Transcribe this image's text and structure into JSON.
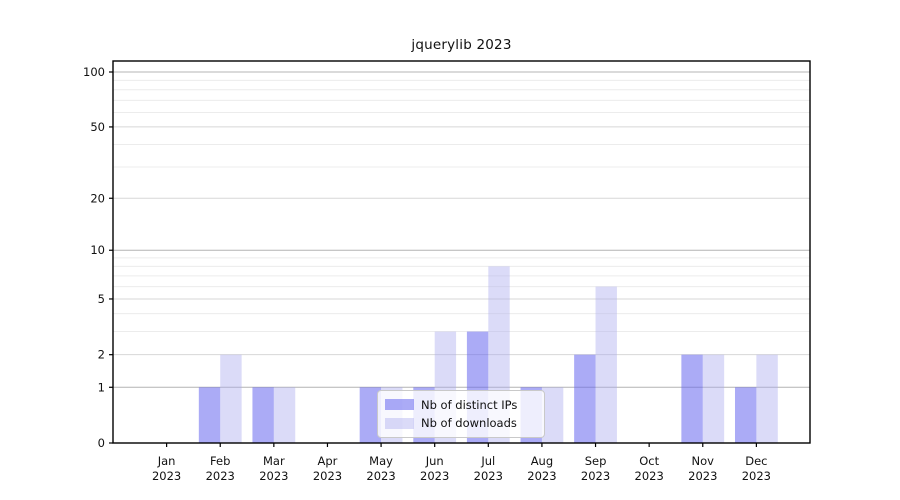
{
  "chart_data": {
    "type": "bar",
    "title": "jquerylib 2023",
    "categories": [
      "Jan",
      "Feb",
      "Mar",
      "Apr",
      "May",
      "Jun",
      "Jul",
      "Aug",
      "Sep",
      "Oct",
      "Nov",
      "Dec"
    ],
    "category_year": "2023",
    "series": [
      {
        "name": "Nb of distinct IPs",
        "color": "rgba(102,102,238,0.55)",
        "values": [
          0,
          1,
          1,
          0,
          1,
          1,
          3,
          1,
          2,
          0,
          2,
          1
        ]
      },
      {
        "name": "Nb of downloads",
        "color": "rgba(170,170,238,0.42)",
        "values": [
          0,
          2,
          1,
          0,
          1,
          3,
          8,
          1,
          6,
          0,
          2,
          2
        ]
      }
    ],
    "yscale": "log1p",
    "yticks": [
      0,
      1,
      2,
      5,
      10,
      20,
      50,
      100
    ],
    "ylim": [
      0,
      115
    ],
    "grid": true,
    "legend_position": "lower center",
    "xlabel": "",
    "ylabel": ""
  },
  "colors": {
    "grid_major": "#b4b4b4",
    "grid_mid": "#d7d7d7",
    "grid_minor": "#ececec",
    "axis": "#000000",
    "tick_label": "#111111"
  }
}
